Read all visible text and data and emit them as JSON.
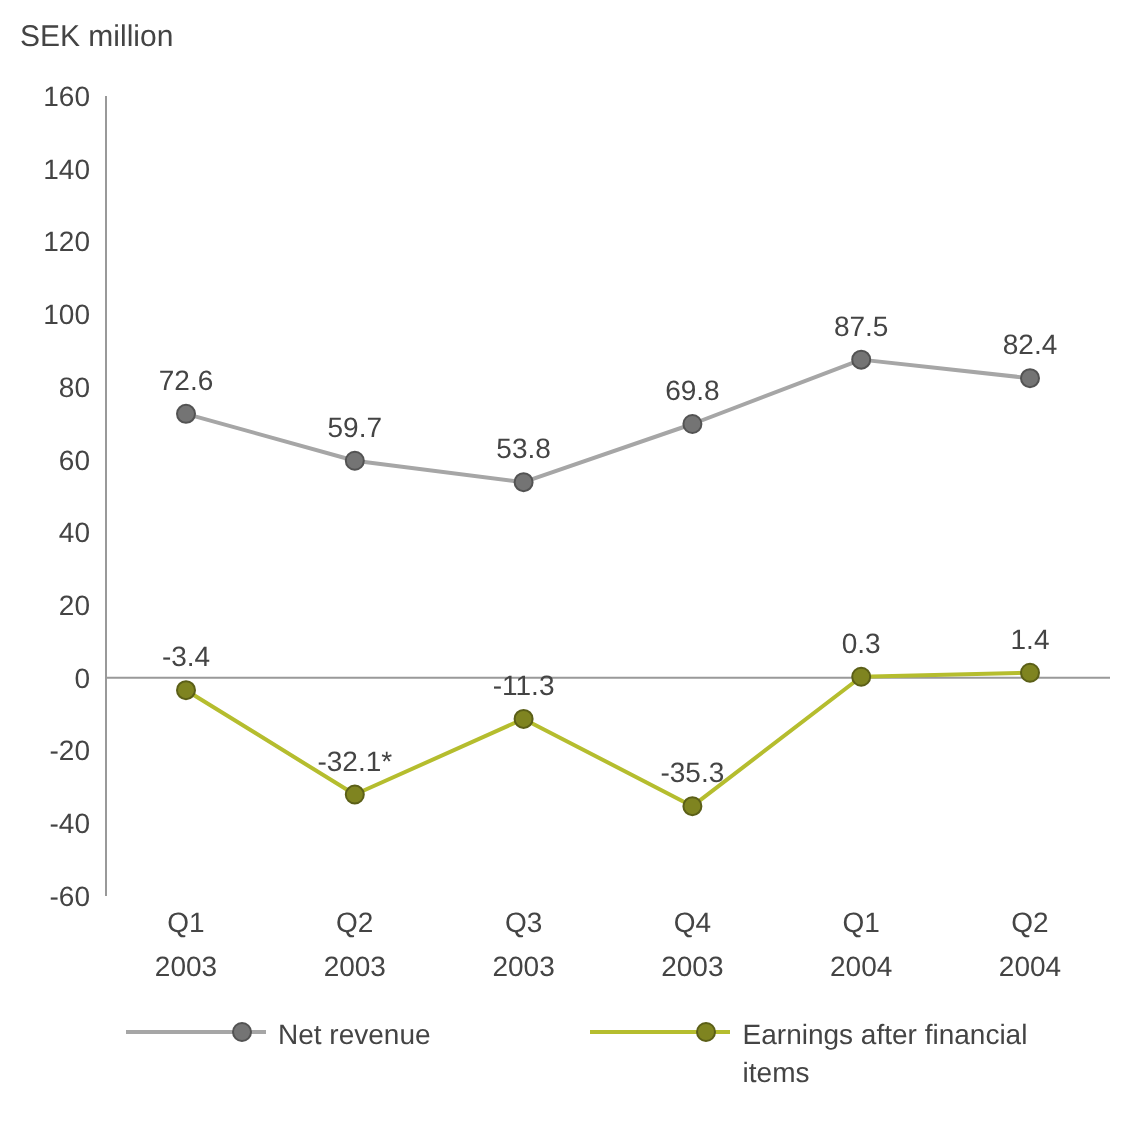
{
  "chart_data": {
    "type": "line",
    "ylabel": "SEK million",
    "categories": [
      "Q1 2003",
      "Q2 2003",
      "Q3 2003",
      "Q4 2003",
      "Q1 2004",
      "Q2 2004"
    ],
    "series": [
      {
        "name": "Net revenue",
        "color": "#a6a6a6",
        "values": [
          72.6,
          59.7,
          53.8,
          69.8,
          87.5,
          82.4
        ],
        "value_labels": [
          "72.6",
          "59.7",
          "53.8",
          "69.8",
          "87.5",
          "82.4"
        ]
      },
      {
        "name": "Earnings after financial items",
        "color": "#b5bd2e",
        "values": [
          -3.4,
          -32.1,
          -11.3,
          -35.3,
          0.3,
          1.4
        ],
        "value_labels": [
          "-3.4",
          "-32.1*",
          "-11.3",
          "-35.3",
          "0.3",
          "1.4"
        ]
      }
    ],
    "ylim": [
      -60,
      160
    ],
    "yticks": [
      -60,
      -40,
      -20,
      0,
      20,
      40,
      60,
      80,
      100,
      120,
      140,
      160
    ],
    "ref_lines": [
      {
        "axis": "y",
        "value": 0,
        "color": "#999999"
      }
    ],
    "legend": "bottom",
    "marker": "circle",
    "line_style": "solid"
  }
}
